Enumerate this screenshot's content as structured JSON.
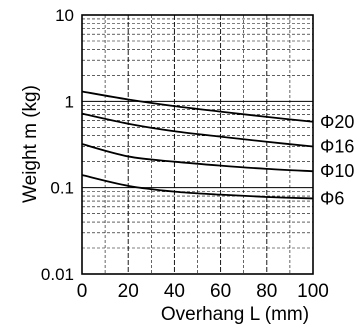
{
  "chart_data": {
    "type": "line",
    "xlabel": "Overhang L (mm)",
    "ylabel": "Weight m (kg)",
    "xlim": [
      0,
      100
    ],
    "ylim": [
      0.01,
      10
    ],
    "yscale": "log",
    "grid": true,
    "x_ticks": [
      "0",
      "20",
      "40",
      "60",
      "80",
      "100"
    ],
    "y_ticks": [
      "0.01",
      "0.1",
      "1",
      "10"
    ],
    "series": [
      {
        "name": "Φ20",
        "x": [
          0,
          20,
          40,
          60,
          80,
          100
        ],
        "y": [
          1.3,
          1.05,
          0.88,
          0.76,
          0.66,
          0.58
        ]
      },
      {
        "name": "Φ16",
        "x": [
          0,
          20,
          40,
          60,
          80,
          100
        ],
        "y": [
          0.72,
          0.55,
          0.45,
          0.39,
          0.34,
          0.3
        ]
      },
      {
        "name": "Φ10",
        "x": [
          0,
          20,
          40,
          60,
          80,
          100
        ],
        "y": [
          0.32,
          0.23,
          0.2,
          0.18,
          0.165,
          0.155
        ]
      },
      {
        "name": "Φ6",
        "x": [
          0,
          20,
          40,
          60,
          80,
          100
        ],
        "y": [
          0.14,
          0.105,
          0.09,
          0.083,
          0.078,
          0.075
        ]
      }
    ]
  }
}
